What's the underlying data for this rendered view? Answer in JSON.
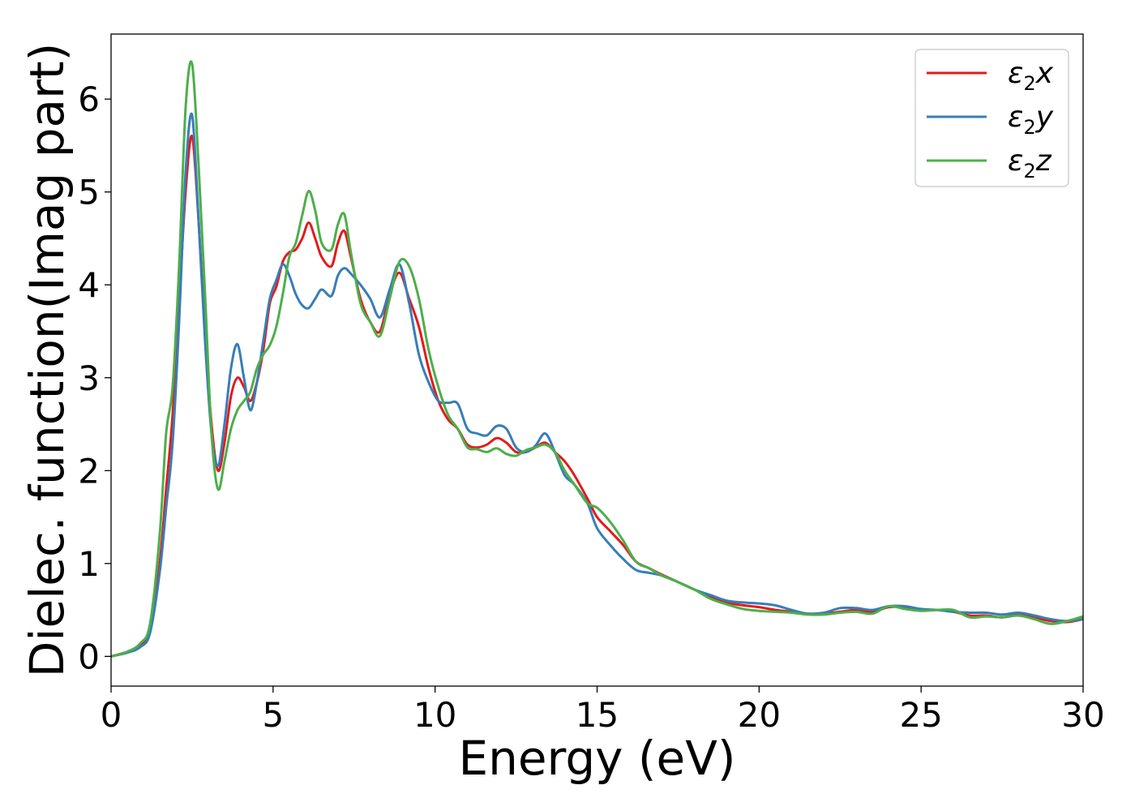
{
  "chart_data": {
    "type": "line",
    "xlabel": "Energy (eV)",
    "ylabel": "Dielec. function(Imag part)",
    "xlim": [
      0,
      30
    ],
    "ylim": [
      -0.32,
      6.7
    ],
    "xticks": [
      0,
      5,
      10,
      15,
      20,
      25,
      30
    ],
    "yticks": [
      0,
      1,
      2,
      3,
      4,
      5,
      6
    ],
    "grid": false,
    "legend_position": "top-right",
    "series": [
      {
        "name": "ε₂x",
        "legend_base": "ε",
        "legend_sub": "2",
        "legend_suffix": "x",
        "color": "#e41a1c",
        "points": [
          [
            0,
            0
          ],
          [
            0.5,
            0.05
          ],
          [
            0.9,
            0.12
          ],
          [
            1.2,
            0.3
          ],
          [
            1.5,
            1.0
          ],
          [
            1.7,
            1.8
          ],
          [
            1.9,
            2.6
          ],
          [
            2.1,
            3.8
          ],
          [
            2.3,
            5.0
          ],
          [
            2.5,
            5.6
          ],
          [
            2.7,
            4.7
          ],
          [
            2.9,
            3.5
          ],
          [
            3.1,
            2.5
          ],
          [
            3.3,
            2.0
          ],
          [
            3.5,
            2.3
          ],
          [
            3.7,
            2.8
          ],
          [
            3.9,
            3.0
          ],
          [
            4.1,
            2.9
          ],
          [
            4.3,
            2.75
          ],
          [
            4.5,
            2.95
          ],
          [
            4.7,
            3.3
          ],
          [
            4.9,
            3.8
          ],
          [
            5.1,
            3.98
          ],
          [
            5.3,
            4.25
          ],
          [
            5.5,
            4.35
          ],
          [
            5.7,
            4.38
          ],
          [
            5.9,
            4.5
          ],
          [
            6.1,
            4.67
          ],
          [
            6.3,
            4.5
          ],
          [
            6.5,
            4.3
          ],
          [
            6.8,
            4.2
          ],
          [
            7.0,
            4.45
          ],
          [
            7.2,
            4.58
          ],
          [
            7.4,
            4.3
          ],
          [
            7.7,
            3.85
          ],
          [
            8.0,
            3.6
          ],
          [
            8.3,
            3.5
          ],
          [
            8.6,
            3.9
          ],
          [
            8.9,
            4.13
          ],
          [
            9.2,
            3.85
          ],
          [
            9.5,
            3.55
          ],
          [
            9.8,
            3.1
          ],
          [
            10.1,
            2.75
          ],
          [
            10.4,
            2.55
          ],
          [
            10.7,
            2.45
          ],
          [
            11.0,
            2.28
          ],
          [
            11.3,
            2.25
          ],
          [
            11.6,
            2.28
          ],
          [
            11.9,
            2.35
          ],
          [
            12.2,
            2.3
          ],
          [
            12.5,
            2.2
          ],
          [
            12.8,
            2.2
          ],
          [
            13.1,
            2.25
          ],
          [
            13.4,
            2.3
          ],
          [
            13.7,
            2.2
          ],
          [
            14.0,
            2.1
          ],
          [
            14.3,
            1.95
          ],
          [
            14.7,
            1.7
          ],
          [
            15.0,
            1.5
          ],
          [
            15.4,
            1.35
          ],
          [
            15.8,
            1.2
          ],
          [
            16.2,
            1.02
          ],
          [
            16.6,
            0.95
          ],
          [
            17.0,
            0.88
          ],
          [
            17.5,
            0.8
          ],
          [
            18.0,
            0.72
          ],
          [
            18.5,
            0.64
          ],
          [
            19.0,
            0.58
          ],
          [
            19.5,
            0.55
          ],
          [
            20.0,
            0.53
          ],
          [
            20.5,
            0.5
          ],
          [
            21.0,
            0.48
          ],
          [
            21.5,
            0.46
          ],
          [
            22.0,
            0.46
          ],
          [
            22.5,
            0.48
          ],
          [
            23.0,
            0.5
          ],
          [
            23.5,
            0.48
          ],
          [
            24.0,
            0.53
          ],
          [
            24.5,
            0.53
          ],
          [
            25.0,
            0.5
          ],
          [
            25.5,
            0.5
          ],
          [
            26.0,
            0.48
          ],
          [
            26.5,
            0.44
          ],
          [
            27.0,
            0.44
          ],
          [
            27.5,
            0.42
          ],
          [
            28.0,
            0.45
          ],
          [
            28.5,
            0.42
          ],
          [
            29.0,
            0.38
          ],
          [
            29.5,
            0.37
          ],
          [
            30.0,
            0.4
          ]
        ]
      },
      {
        "name": "ε₂y",
        "legend_base": "ε",
        "legend_sub": "2",
        "legend_suffix": "y",
        "color": "#377eb8",
        "points": [
          [
            0,
            0
          ],
          [
            0.5,
            0.04
          ],
          [
            0.9,
            0.1
          ],
          [
            1.2,
            0.25
          ],
          [
            1.5,
            0.9
          ],
          [
            1.7,
            1.6
          ],
          [
            1.9,
            2.3
          ],
          [
            2.1,
            3.6
          ],
          [
            2.3,
            5.2
          ],
          [
            2.5,
            5.83
          ],
          [
            2.7,
            4.7
          ],
          [
            2.9,
            3.4
          ],
          [
            3.1,
            2.4
          ],
          [
            3.3,
            2.05
          ],
          [
            3.5,
            2.5
          ],
          [
            3.7,
            3.1
          ],
          [
            3.9,
            3.36
          ],
          [
            4.1,
            3.0
          ],
          [
            4.3,
            2.65
          ],
          [
            4.5,
            2.95
          ],
          [
            4.7,
            3.4
          ],
          [
            4.9,
            3.85
          ],
          [
            5.1,
            4.05
          ],
          [
            5.3,
            4.22
          ],
          [
            5.5,
            4.1
          ],
          [
            5.7,
            3.9
          ],
          [
            5.9,
            3.78
          ],
          [
            6.1,
            3.75
          ],
          [
            6.3,
            3.85
          ],
          [
            6.5,
            3.95
          ],
          [
            6.8,
            3.88
          ],
          [
            7.0,
            4.1
          ],
          [
            7.2,
            4.18
          ],
          [
            7.4,
            4.12
          ],
          [
            7.7,
            4.0
          ],
          [
            8.0,
            3.85
          ],
          [
            8.3,
            3.65
          ],
          [
            8.6,
            3.95
          ],
          [
            8.9,
            4.22
          ],
          [
            9.2,
            3.8
          ],
          [
            9.5,
            3.25
          ],
          [
            9.8,
            2.95
          ],
          [
            10.1,
            2.75
          ],
          [
            10.4,
            2.73
          ],
          [
            10.7,
            2.72
          ],
          [
            11.0,
            2.45
          ],
          [
            11.3,
            2.4
          ],
          [
            11.6,
            2.38
          ],
          [
            11.9,
            2.48
          ],
          [
            12.2,
            2.45
          ],
          [
            12.5,
            2.25
          ],
          [
            12.8,
            2.2
          ],
          [
            13.1,
            2.27
          ],
          [
            13.4,
            2.4
          ],
          [
            13.7,
            2.2
          ],
          [
            14.0,
            1.95
          ],
          [
            14.3,
            1.85
          ],
          [
            14.7,
            1.65
          ],
          [
            15.0,
            1.38
          ],
          [
            15.4,
            1.2
          ],
          [
            15.8,
            1.05
          ],
          [
            16.2,
            0.93
          ],
          [
            16.6,
            0.9
          ],
          [
            17.0,
            0.87
          ],
          [
            17.5,
            0.8
          ],
          [
            18.0,
            0.72
          ],
          [
            18.5,
            0.66
          ],
          [
            19.0,
            0.6
          ],
          [
            19.5,
            0.58
          ],
          [
            20.0,
            0.57
          ],
          [
            20.5,
            0.55
          ],
          [
            21.0,
            0.5
          ],
          [
            21.5,
            0.46
          ],
          [
            22.0,
            0.47
          ],
          [
            22.5,
            0.52
          ],
          [
            23.0,
            0.52
          ],
          [
            23.5,
            0.5
          ],
          [
            24.0,
            0.54
          ],
          [
            24.5,
            0.54
          ],
          [
            25.0,
            0.51
          ],
          [
            25.5,
            0.5
          ],
          [
            26.0,
            0.48
          ],
          [
            26.5,
            0.47
          ],
          [
            27.0,
            0.47
          ],
          [
            27.5,
            0.45
          ],
          [
            28.0,
            0.47
          ],
          [
            28.5,
            0.44
          ],
          [
            29.0,
            0.4
          ],
          [
            29.5,
            0.38
          ],
          [
            30.0,
            0.4
          ]
        ]
      },
      {
        "name": "ε₂z",
        "legend_base": "ε",
        "legend_sub": "2",
        "legend_suffix": "z",
        "color": "#4daf4a",
        "points": [
          [
            0,
            0
          ],
          [
            0.5,
            0.05
          ],
          [
            0.9,
            0.14
          ],
          [
            1.2,
            0.35
          ],
          [
            1.5,
            1.3
          ],
          [
            1.7,
            2.4
          ],
          [
            1.9,
            2.9
          ],
          [
            2.1,
            4.2
          ],
          [
            2.3,
            5.9
          ],
          [
            2.5,
            6.38
          ],
          [
            2.7,
            5.3
          ],
          [
            2.9,
            3.9
          ],
          [
            3.1,
            2.4
          ],
          [
            3.3,
            1.8
          ],
          [
            3.5,
            2.1
          ],
          [
            3.7,
            2.45
          ],
          [
            3.9,
            2.65
          ],
          [
            4.1,
            2.75
          ],
          [
            4.3,
            2.85
          ],
          [
            4.5,
            3.1
          ],
          [
            4.7,
            3.25
          ],
          [
            4.9,
            3.35
          ],
          [
            5.1,
            3.55
          ],
          [
            5.3,
            3.9
          ],
          [
            5.5,
            4.3
          ],
          [
            5.7,
            4.45
          ],
          [
            5.9,
            4.75
          ],
          [
            6.1,
            5.01
          ],
          [
            6.3,
            4.8
          ],
          [
            6.5,
            4.45
          ],
          [
            6.8,
            4.38
          ],
          [
            7.0,
            4.65
          ],
          [
            7.2,
            4.76
          ],
          [
            7.4,
            4.35
          ],
          [
            7.7,
            3.8
          ],
          [
            8.0,
            3.6
          ],
          [
            8.3,
            3.45
          ],
          [
            8.6,
            3.85
          ],
          [
            8.9,
            4.25
          ],
          [
            9.2,
            4.2
          ],
          [
            9.5,
            3.85
          ],
          [
            9.8,
            3.3
          ],
          [
            10.1,
            2.9
          ],
          [
            10.4,
            2.6
          ],
          [
            10.7,
            2.45
          ],
          [
            11.0,
            2.25
          ],
          [
            11.3,
            2.23
          ],
          [
            11.6,
            2.2
          ],
          [
            11.9,
            2.24
          ],
          [
            12.2,
            2.18
          ],
          [
            12.5,
            2.16
          ],
          [
            12.8,
            2.22
          ],
          [
            13.1,
            2.25
          ],
          [
            13.4,
            2.28
          ],
          [
            13.7,
            2.2
          ],
          [
            14.0,
            2.0
          ],
          [
            14.3,
            1.85
          ],
          [
            14.7,
            1.65
          ],
          [
            15.0,
            1.6
          ],
          [
            15.4,
            1.45
          ],
          [
            15.8,
            1.25
          ],
          [
            16.2,
            1.02
          ],
          [
            16.6,
            0.95
          ],
          [
            17.0,
            0.87
          ],
          [
            17.5,
            0.8
          ],
          [
            18.0,
            0.72
          ],
          [
            18.5,
            0.62
          ],
          [
            19.0,
            0.56
          ],
          [
            19.5,
            0.51
          ],
          [
            20.0,
            0.49
          ],
          [
            20.5,
            0.48
          ],
          [
            21.0,
            0.47
          ],
          [
            21.5,
            0.45
          ],
          [
            22.0,
            0.45
          ],
          [
            22.5,
            0.47
          ],
          [
            23.0,
            0.48
          ],
          [
            23.5,
            0.46
          ],
          [
            24.0,
            0.54
          ],
          [
            24.5,
            0.51
          ],
          [
            25.0,
            0.49
          ],
          [
            25.5,
            0.5
          ],
          [
            26.0,
            0.5
          ],
          [
            26.5,
            0.42
          ],
          [
            27.0,
            0.43
          ],
          [
            27.5,
            0.42
          ],
          [
            28.0,
            0.44
          ],
          [
            28.5,
            0.4
          ],
          [
            29.0,
            0.35
          ],
          [
            29.5,
            0.38
          ],
          [
            30.0,
            0.43
          ]
        ]
      }
    ]
  }
}
